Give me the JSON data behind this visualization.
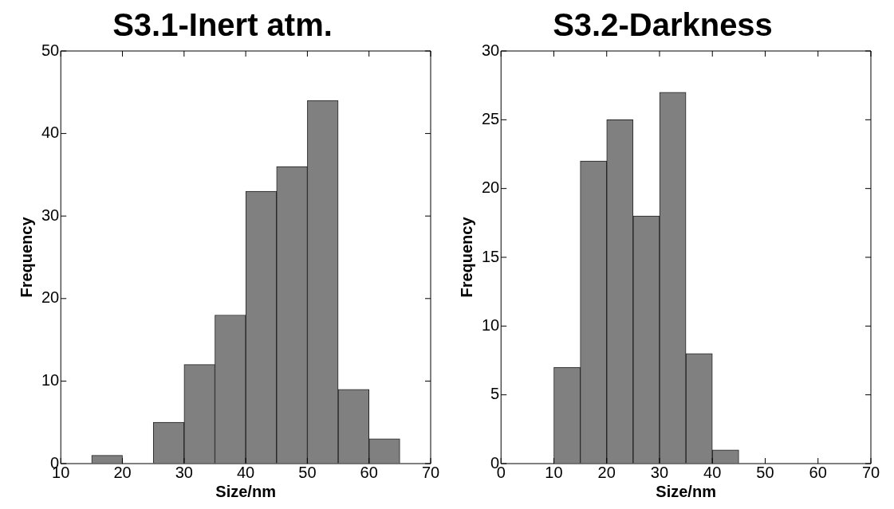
{
  "chart_data": [
    {
      "type": "histogram",
      "title": "S3.1-Inert atm.",
      "xlabel": "Size/nm",
      "ylabel": "Frequency",
      "bins": [
        15,
        20,
        25,
        30,
        35,
        40,
        45,
        50,
        55,
        60,
        65
      ],
      "values": [
        1,
        0,
        5,
        12,
        18,
        33,
        36,
        44,
        9,
        3
      ],
      "color": "#808080",
      "xlim": [
        10,
        70
      ],
      "xticks": [
        10,
        20,
        30,
        40,
        50,
        60,
        70
      ],
      "ylim": [
        0,
        50
      ],
      "yticks": [
        0,
        10,
        20,
        30,
        40,
        50
      ],
      "grid": false,
      "legend": false
    },
    {
      "type": "histogram",
      "title": "S3.2-Darkness",
      "xlabel": "Size/nm",
      "ylabel": "Frequency",
      "bins": [
        10,
        15,
        20,
        25,
        30,
        35,
        40,
        45
      ],
      "values": [
        7,
        22,
        25,
        18,
        27,
        8,
        1
      ],
      "color": "#808080",
      "xlim": [
        0,
        70
      ],
      "xticks": [
        0,
        10,
        20,
        30,
        40,
        50,
        60,
        70
      ],
      "ylim": [
        0,
        30
      ],
      "yticks": [
        0,
        5,
        10,
        15,
        20,
        25,
        30
      ],
      "grid": false,
      "legend": false
    }
  ]
}
